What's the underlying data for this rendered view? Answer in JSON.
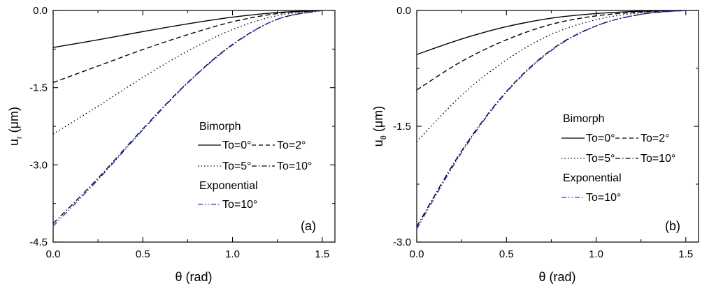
{
  "chart_data": [
    {
      "type": "line",
      "panel_label": "(a)",
      "xlabel": "θ (rad)",
      "ylabel": "u_r (μm)",
      "ylabel_main": "u",
      "ylabel_sub": "r",
      "ylabel_unit": " (μm)",
      "xlim": [
        0,
        1.5708
      ],
      "ylim": [
        -4.5,
        0
      ],
      "xticks": [
        0.0,
        0.5,
        1.0,
        1.5
      ],
      "xtick_labels": [
        "0.0",
        "0.5",
        "1.0",
        "1.5"
      ],
      "yticks": [
        0.0,
        -1.5,
        -3.0,
        -4.5
      ],
      "ytick_labels": [
        "0.0",
        "-1.5",
        "-3.0",
        "-4.5"
      ],
      "legend": {
        "group1_title": "Bimorph",
        "group2_title": "Exponential",
        "entries": [
          "To=0°",
          "To=2°",
          "To=5°",
          "To=10°",
          "To=10°"
        ]
      },
      "series": [
        {
          "name": "Bimorph To=0°",
          "style": "solid",
          "color": "#000000",
          "x": [
            0,
            0.25,
            0.5,
            0.75,
            1.0,
            1.25,
            1.5
          ],
          "y": [
            -0.72,
            -0.57,
            -0.41,
            -0.26,
            -0.13,
            -0.04,
            0.0
          ]
        },
        {
          "name": "Bimorph To=2°",
          "style": "dashed",
          "color": "#000000",
          "x": [
            0,
            0.25,
            0.5,
            0.75,
            1.0,
            1.25,
            1.5
          ],
          "y": [
            -1.4,
            -1.08,
            -0.76,
            -0.47,
            -0.22,
            -0.06,
            0.0
          ]
        },
        {
          "name": "Bimorph To=5°",
          "style": "dotted",
          "color": "#000000",
          "x": [
            0,
            0.25,
            0.5,
            0.75,
            1.0,
            1.25,
            1.5
          ],
          "y": [
            -2.4,
            -1.86,
            -1.3,
            -0.79,
            -0.37,
            -0.1,
            0.0
          ]
        },
        {
          "name": "Bimorph To=10°",
          "style": "dashdot",
          "color": "#000000",
          "x": [
            0,
            0.25,
            0.5,
            0.75,
            1.0,
            1.25,
            1.5
          ],
          "y": [
            -4.14,
            -3.26,
            -2.3,
            -1.4,
            -0.66,
            -0.17,
            0.0
          ]
        },
        {
          "name": "Exponential To=10°",
          "style": "dashdotdot",
          "color": "#2233cc",
          "x": [
            0,
            0.25,
            0.5,
            0.75,
            1.0,
            1.25,
            1.5
          ],
          "y": [
            -4.19,
            -3.29,
            -2.32,
            -1.41,
            -0.67,
            -0.17,
            0.0
          ]
        }
      ]
    },
    {
      "type": "line",
      "panel_label": "(b)",
      "xlabel": "θ (rad)",
      "ylabel": "u_θ (μm)",
      "ylabel_main": "u",
      "ylabel_sub": "θ",
      "ylabel_unit": " (μm)",
      "xlim": [
        0,
        1.5708
      ],
      "ylim": [
        -3.0,
        0
      ],
      "xticks": [
        0.0,
        0.5,
        1.0,
        1.5
      ],
      "xtick_labels": [
        "0.0",
        "0.5",
        "1.0",
        "1.5"
      ],
      "yticks": [
        0.0,
        -1.5,
        -3.0
      ],
      "ytick_labels": [
        "0.0",
        "-1.5",
        "-3.0"
      ],
      "legend": {
        "group1_title": "Bimorph",
        "group2_title": "Exponential",
        "entries": [
          "To=0°",
          "To=2°",
          "To=5°",
          "To=10°",
          "To=10°"
        ]
      },
      "series": [
        {
          "name": "Bimorph To=0°",
          "style": "solid",
          "color": "#000000",
          "x": [
            0,
            0.25,
            0.5,
            0.75,
            1.0,
            1.25,
            1.5
          ],
          "y": [
            -0.57,
            -0.37,
            -0.21,
            -0.1,
            -0.04,
            -0.01,
            0.0
          ]
        },
        {
          "name": "Bimorph To=2°",
          "style": "dashed",
          "color": "#000000",
          "x": [
            0,
            0.25,
            0.5,
            0.75,
            1.0,
            1.25,
            1.5
          ],
          "y": [
            -1.03,
            -0.66,
            -0.38,
            -0.18,
            -0.07,
            -0.02,
            0.0
          ]
        },
        {
          "name": "Bimorph To=5°",
          "style": "dotted",
          "color": "#000000",
          "x": [
            0,
            0.25,
            0.5,
            0.75,
            1.0,
            1.25,
            1.5
          ],
          "y": [
            -1.7,
            -1.1,
            -0.64,
            -0.31,
            -0.12,
            -0.03,
            0.0
          ]
        },
        {
          "name": "Bimorph To=10°",
          "style": "dashdot",
          "color": "#000000",
          "x": [
            0,
            0.25,
            0.5,
            0.75,
            1.0,
            1.25,
            1.5
          ],
          "y": [
            -2.8,
            -1.82,
            -1.05,
            -0.51,
            -0.2,
            -0.05,
            0.0
          ]
        },
        {
          "name": "Exponential To=10°",
          "style": "dashdotdot",
          "color": "#2233cc",
          "x": [
            0,
            0.25,
            0.5,
            0.75,
            1.0,
            1.25,
            1.5
          ],
          "y": [
            -2.83,
            -1.84,
            -1.06,
            -0.52,
            -0.2,
            -0.05,
            0.0
          ]
        }
      ]
    }
  ]
}
